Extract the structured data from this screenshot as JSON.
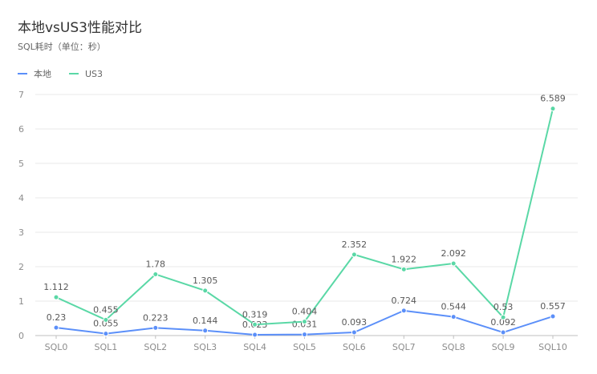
{
  "chart_data": {
    "type": "line",
    "title": "本地vsUS3性能对比",
    "subtitle": "SQL耗时（单位：秒）",
    "categories": [
      "SQL0",
      "SQL1",
      "SQL2",
      "SQL3",
      "SQL4",
      "SQL5",
      "SQL6",
      "SQL7",
      "SQL8",
      "SQL9",
      "SQL10"
    ],
    "series": [
      {
        "name": "本地",
        "color": "#5b8ff9",
        "values": [
          0.23,
          0.055,
          0.223,
          0.144,
          0.023,
          0.031,
          0.093,
          0.724,
          0.544,
          0.092,
          0.557
        ],
        "labels": [
          "0.23",
          "0.055",
          "0.223",
          "0.144",
          "0.023",
          "0.031",
          "0.093",
          "0.724",
          "0.544",
          "0.092",
          "0.557"
        ]
      },
      {
        "name": "US3",
        "color": "#5ad8a6",
        "values": [
          1.112,
          0.455,
          1.78,
          1.305,
          0.319,
          0.404,
          2.352,
          1.922,
          2.092,
          0.53,
          6.589
        ],
        "labels": [
          "1.112",
          "0.455",
          "1.78",
          "1.305",
          "0.319",
          "0.404",
          "2.352",
          "1.922",
          "2.092",
          "0.53",
          "6.589"
        ]
      }
    ],
    "ylim": [
      0,
      7
    ],
    "yticks": [
      "0",
      "1",
      "2",
      "3",
      "4",
      "5",
      "6",
      "7"
    ],
    "grid": true,
    "legend_position": "top-left"
  }
}
